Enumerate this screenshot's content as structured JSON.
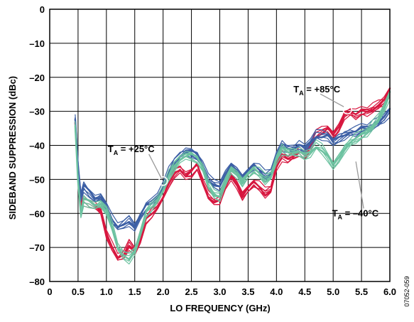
{
  "chart_data": {
    "type": "line",
    "xlabel": "LO FREQUENCY (GHz)",
    "ylabel": "SIDEBAND SUPPRESSION (dBc)",
    "xlim": [
      0,
      6.0
    ],
    "ylim": [
      -80,
      0
    ],
    "x_ticks": [
      "0",
      "0.5",
      "1.0",
      "1.5",
      "2.0",
      "2.5",
      "3.0",
      "3.5",
      "4.0",
      "4.5",
      "5.0",
      "5.5",
      "6.0"
    ],
    "y_ticks": [
      "0",
      "–10",
      "–20",
      "–30",
      "–40",
      "–50",
      "–60",
      "–70",
      "–80"
    ],
    "grid": true,
    "colors": {
      "t85": "#d7173f",
      "t25": "#3c5fa5",
      "tm40": "#6cc2a0"
    },
    "annotations": [
      {
        "label_main": "T",
        "label_sub": "A",
        "label_rest": " = +85°C",
        "series": "t85",
        "x": 5.25,
        "y": -29.5
      },
      {
        "label_main": "T",
        "label_sub": "A",
        "label_rest": " = +25°C",
        "series": "t25",
        "x": 2.0,
        "y": -50.5
      },
      {
        "label_main": "T",
        "label_sub": "A",
        "label_rest": " = –40°C",
        "series": "tm40",
        "x": 5.3,
        "y": -43.5
      }
    ],
    "figure_id": "07052-059",
    "series": [
      {
        "key": "t85",
        "x": [
          0.45,
          0.5,
          0.55,
          0.6,
          0.7,
          0.8,
          0.9,
          1.0,
          1.1,
          1.2,
          1.3,
          1.4,
          1.5,
          1.6,
          1.7,
          1.8,
          1.9,
          2.0,
          2.1,
          2.2,
          2.3,
          2.4,
          2.5,
          2.6,
          2.7,
          2.8,
          2.9,
          3.0,
          3.1,
          3.2,
          3.3,
          3.4,
          3.5,
          3.6,
          3.7,
          3.8,
          3.9,
          4.0,
          4.1,
          4.2,
          4.3,
          4.4,
          4.5,
          4.6,
          4.7,
          4.8,
          4.9,
          5.0,
          5.1,
          5.2,
          5.3,
          5.4,
          5.5,
          5.6,
          5.7,
          5.8,
          5.9,
          6.0
        ],
        "y": [
          -33,
          -48,
          -58,
          -56,
          -57,
          -58,
          -59,
          -66,
          -70,
          -73,
          -72,
          -69,
          -71,
          -68,
          -62,
          -60,
          -58,
          -55,
          -51,
          -48,
          -47,
          -49,
          -48,
          -46,
          -51,
          -55,
          -56,
          -56,
          -52,
          -49,
          -51,
          -55,
          -53,
          -51,
          -52,
          -54,
          -53,
          -46,
          -43,
          -44,
          -43,
          -42,
          -43,
          -40,
          -37,
          -36,
          -35,
          -37,
          -35,
          -31,
          -30,
          -31,
          -30,
          -30,
          -29,
          -28,
          -27,
          -24
        ]
      },
      {
        "key": "t25",
        "x": [
          0.45,
          0.5,
          0.55,
          0.6,
          0.7,
          0.8,
          0.9,
          1.0,
          1.1,
          1.2,
          1.3,
          1.4,
          1.5,
          1.6,
          1.7,
          1.8,
          1.9,
          2.0,
          2.1,
          2.2,
          2.3,
          2.4,
          2.5,
          2.6,
          2.7,
          2.8,
          2.9,
          3.0,
          3.1,
          3.2,
          3.3,
          3.4,
          3.5,
          3.6,
          3.7,
          3.8,
          3.9,
          4.0,
          4.1,
          4.2,
          4.3,
          4.4,
          4.5,
          4.6,
          4.7,
          4.8,
          4.9,
          5.0,
          5.1,
          5.2,
          5.3,
          5.4,
          5.5,
          5.6,
          5.7,
          5.8,
          5.9,
          6.0
        ],
        "y": [
          -32,
          -46,
          -55,
          -52,
          -54,
          -56,
          -55,
          -58,
          -62,
          -64,
          -63,
          -62,
          -64,
          -61,
          -58,
          -57,
          -55,
          -52,
          -48,
          -45,
          -43,
          -42,
          -42,
          -43,
          -46,
          -50,
          -51,
          -52,
          -49,
          -46,
          -47,
          -50,
          -48,
          -46,
          -47,
          -49,
          -48,
          -43,
          -40,
          -41,
          -41,
          -40,
          -41,
          -39,
          -37,
          -37,
          -37,
          -39,
          -38,
          -37,
          -36,
          -36,
          -35,
          -35,
          -34,
          -33,
          -32,
          -30
        ]
      },
      {
        "key": "tm40",
        "x": [
          0.45,
          0.5,
          0.55,
          0.6,
          0.7,
          0.8,
          0.9,
          1.0,
          1.1,
          1.2,
          1.3,
          1.4,
          1.5,
          1.6,
          1.7,
          1.8,
          1.9,
          2.0,
          2.1,
          2.2,
          2.3,
          2.4,
          2.5,
          2.6,
          2.7,
          2.8,
          2.9,
          3.0,
          3.1,
          3.2,
          3.3,
          3.4,
          3.5,
          3.6,
          3.7,
          3.8,
          3.9,
          4.0,
          4.1,
          4.2,
          4.3,
          4.4,
          4.5,
          4.6,
          4.7,
          4.8,
          4.9,
          5.0,
          5.1,
          5.2,
          5.3,
          5.4,
          5.5,
          5.6,
          5.7,
          5.8,
          5.9,
          6.0
        ],
        "y": [
          -34,
          -50,
          -60,
          -56,
          -57,
          -58,
          -57,
          -59,
          -64,
          -70,
          -72,
          -73,
          -71,
          -66,
          -60,
          -58,
          -56,
          -53,
          -49,
          -46,
          -44,
          -43,
          -43,
          -44,
          -47,
          -52,
          -54,
          -55,
          -51,
          -47,
          -48,
          -51,
          -49,
          -47,
          -48,
          -50,
          -49,
          -44,
          -41,
          -42,
          -42,
          -42,
          -43,
          -42,
          -40,
          -41,
          -43,
          -46,
          -44,
          -41,
          -39,
          -38,
          -37,
          -36,
          -34,
          -32,
          -29,
          -25
        ]
      }
    ]
  }
}
